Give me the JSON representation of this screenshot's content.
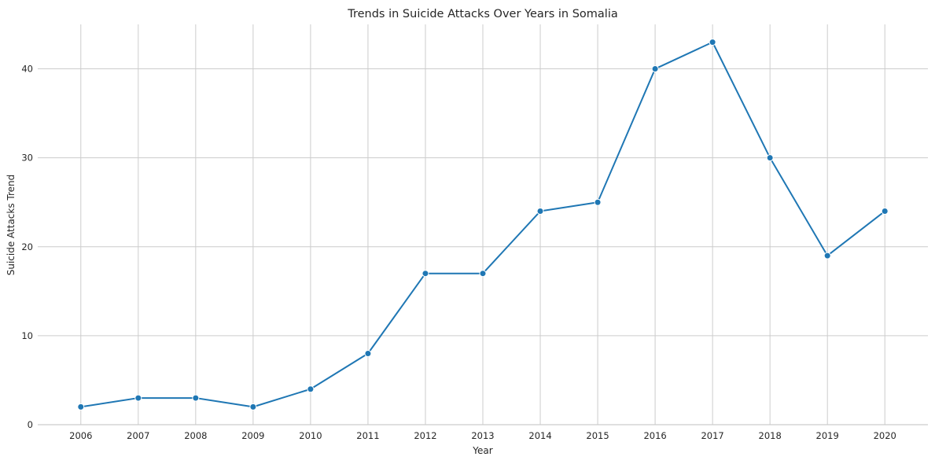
{
  "chart_data": {
    "type": "line",
    "title": "Trends in Suicide Attacks Over Years in Somalia",
    "xlabel": "Year",
    "ylabel": "Suicide Attacks Trend",
    "x": [
      "2006",
      "2007",
      "2008",
      "2009",
      "2010",
      "2011",
      "2012",
      "2013",
      "2014",
      "2015",
      "2016",
      "2017",
      "2018",
      "2019",
      "2020"
    ],
    "y_ticks": [
      "0",
      "10",
      "20",
      "30",
      "40"
    ],
    "ylim": [
      0,
      45
    ],
    "series": [
      {
        "values": [
          2,
          3,
          3,
          2,
          4,
          8,
          17,
          17,
          24,
          25,
          40,
          43,
          30,
          19,
          24
        ],
        "color": "#1f77b4",
        "marker": "circle"
      }
    ],
    "grid": true,
    "legend": "none"
  }
}
